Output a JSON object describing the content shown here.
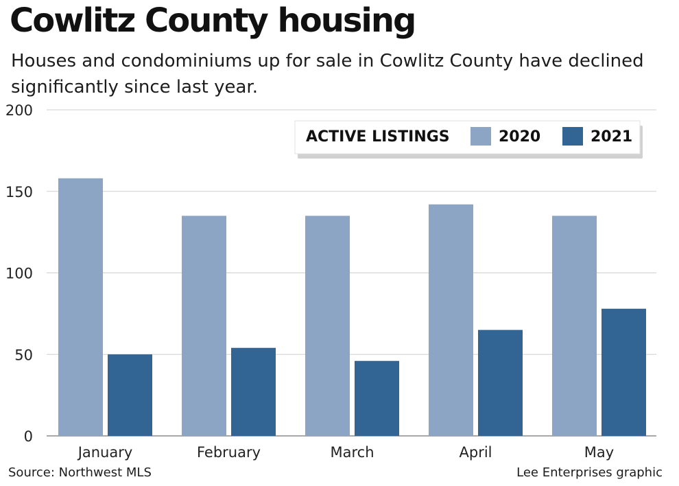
{
  "title": "Cowlitz County housing",
  "subtitle": "Houses and condominiums up for sale in Cowlitz County have declined significantly since last year.",
  "source": "Source: Northwest MLS",
  "credit": "Lee Enterprises graphic",
  "chart_data": {
    "type": "bar",
    "title": "Cowlitz County housing",
    "categories": [
      "January",
      "February",
      "March",
      "April",
      "May"
    ],
    "series": [
      {
        "name": "2020",
        "color": "#8ca5c4",
        "values": [
          158,
          135,
          135,
          142,
          135
        ]
      },
      {
        "name": "2021",
        "color": "#336594",
        "values": [
          50,
          54,
          46,
          65,
          78
        ]
      }
    ],
    "legend_title": "ACTIVE LISTINGS",
    "legend_position": "top-right",
    "ylim": [
      0,
      200
    ],
    "yticks": [
      0,
      50,
      100,
      150,
      200
    ],
    "xlabel": "",
    "ylabel": "",
    "grid": true
  }
}
